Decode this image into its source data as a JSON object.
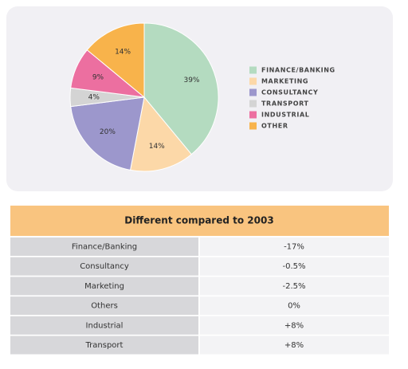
{
  "chart_data": {
    "type": "pie",
    "categories": [
      "FINANCE/BANKING",
      "MARKETING",
      "CONSULTANCY",
      "TRANSPORT",
      "INDUSTRIAL",
      "OTHER"
    ],
    "values": [
      39,
      14,
      20,
      4,
      9,
      14
    ],
    "value_labels": [
      "39%",
      "14%",
      "20%",
      "4%",
      "9%",
      "14%"
    ],
    "colors": [
      "#b4dbc0",
      "#fcd8a8",
      "#9c97cc",
      "#d4d4d4",
      "#ec6fa0",
      "#f8b34b"
    ],
    "legend": "right"
  },
  "table": {
    "title": "Different compared to 2003",
    "rows": [
      [
        "Finance/Banking",
        "-17%"
      ],
      [
        "Consultancy",
        "-0.5%"
      ],
      [
        "Marketing",
        "-2.5%"
      ],
      [
        "Others",
        "0%"
      ],
      [
        "Industrial",
        "+8%"
      ],
      [
        "Transport",
        "+8%"
      ]
    ]
  }
}
